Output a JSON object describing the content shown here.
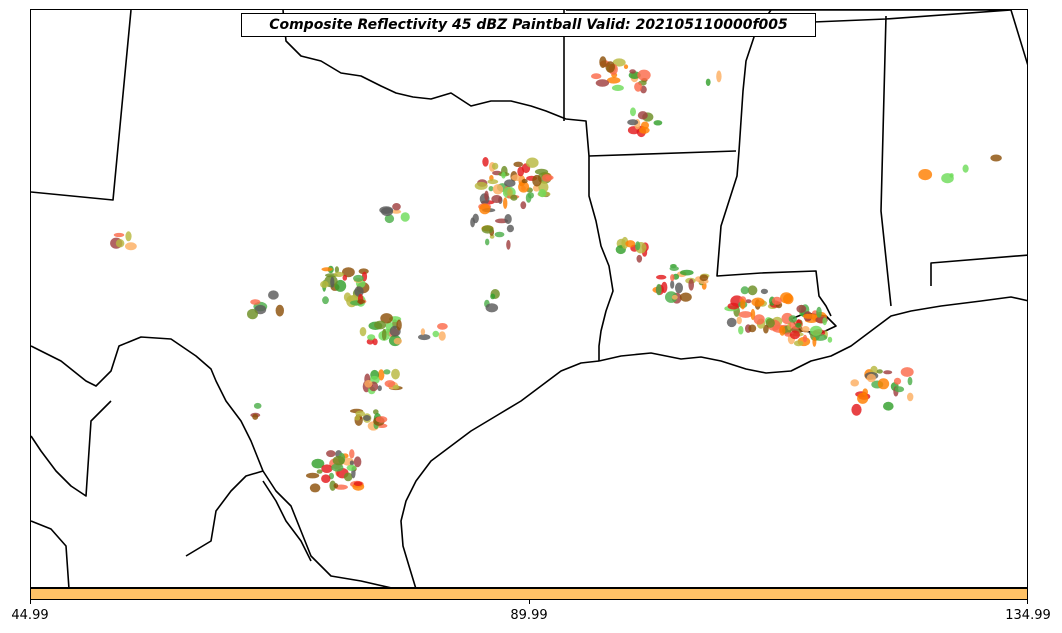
{
  "title": "Composite Reflectivity 45 dBZ Paintball Valid: 202105110000f005",
  "colorbar": {
    "color": "#ffc266",
    "ticks": [
      "44.99",
      "89.99",
      "134.99"
    ]
  },
  "paintball_colors": [
    "#e31a1c",
    "#fb6a4a",
    "#ff7f00",
    "#fdae61",
    "#33a02c",
    "#4daf4a",
    "#6fdc5a",
    "#8c510a",
    "#a04040",
    "#5a5a5a",
    "#b8b840",
    "#6b8e23"
  ],
  "map": {
    "region": "southern-plains-gulf-coast",
    "boundaries": [
      "state-borders",
      "coastline",
      "mexico-border"
    ]
  }
}
